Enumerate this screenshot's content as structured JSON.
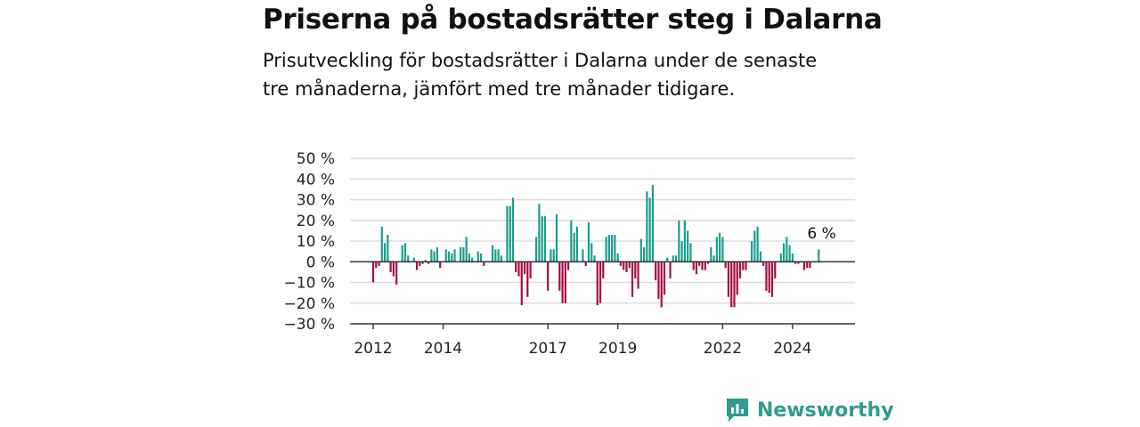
{
  "header": {
    "title": "Priserna på bostadsrätter steg i Dalarna",
    "subtitle": "Prisutveckling för bostadsrätter i Dalarna under de senaste tre månaderna, jämfört med tre månader tidigare."
  },
  "brand": {
    "name": "Newsworthy",
    "logo_icon": "newsworthy-logo-icon"
  },
  "colors": {
    "positive": "#1a9e8f",
    "negative": "#a60d43",
    "grid": "#dddddd",
    "axis": "#333333",
    "brand": "#2e9c8e"
  },
  "chart_data": {
    "type": "bar",
    "title": "Priserna på bostadsrätter steg i Dalarna",
    "subtitle": "Prisutveckling för bostadsrätter i Dalarna under de senaste tre månaderna, jämfört med tre månader tidigare.",
    "xlabel": "",
    "ylabel": "",
    "ylim": [
      -30,
      50
    ],
    "y_ticks": [
      50,
      40,
      30,
      20,
      10,
      0,
      -10,
      -20,
      -30
    ],
    "y_tick_labels": [
      "50 %",
      "40 %",
      "30 %",
      "20 %",
      "10 %",
      "0 %",
      "−10 %",
      "−20 %",
      "−30 %"
    ],
    "x_start": "2012-01",
    "x_tick_labels": [
      {
        "label": "2012",
        "month_index": 0
      },
      {
        "label": "2014",
        "month_index": 24
      },
      {
        "label": "2017",
        "month_index": 60
      },
      {
        "label": "2019",
        "month_index": 84
      },
      {
        "label": "2022",
        "month_index": 120
      },
      {
        "label": "2024",
        "month_index": 144
      }
    ],
    "annotation": {
      "text": "6 %",
      "month_index": 154
    },
    "grid": true,
    "legend": "none",
    "values": [
      -10,
      -3,
      -2,
      17,
      9,
      13,
      -5,
      -7,
      -11,
      0,
      8,
      9,
      3,
      0,
      2,
      -4,
      -2,
      -1,
      1,
      -1,
      6,
      5,
      7,
      -3,
      0,
      6,
      5,
      4,
      6,
      0,
      7,
      7,
      12,
      4,
      2,
      0,
      5,
      4,
      -2,
      0,
      0,
      8,
      6,
      6,
      3,
      0,
      27,
      27,
      31,
      -5,
      -7,
      -21,
      -6,
      -17,
      -8,
      0,
      12,
      28,
      22,
      22,
      -14,
      6,
      6,
      23,
      -14,
      -20,
      -20,
      -4,
      20,
      14,
      17,
      0,
      6,
      -2,
      19,
      9,
      3,
      -21,
      -20,
      -8,
      12,
      13,
      13,
      13,
      4,
      -2,
      -4,
      -5,
      -3,
      -17,
      -8,
      -13,
      11,
      7,
      34,
      31,
      37,
      -9,
      -18,
      -22,
      -16,
      2,
      -8,
      3,
      3,
      20,
      10,
      20,
      15,
      9,
      -4,
      -6,
      -2,
      -4,
      -4,
      -1,
      7,
      3,
      12,
      14,
      12,
      -3,
      -17,
      -22,
      -22,
      -16,
      -8,
      -4,
      -4,
      0,
      10,
      15,
      17,
      5,
      -2,
      -14,
      -15,
      -17,
      -8,
      0,
      4,
      9,
      12,
      8,
      4,
      -1,
      -1,
      0,
      -4,
      -3,
      -3,
      0,
      0,
      6
    ]
  }
}
